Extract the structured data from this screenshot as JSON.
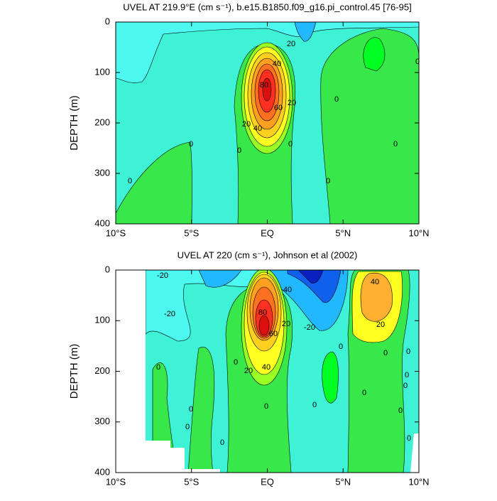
{
  "chart_data": [
    {
      "type": "contour",
      "title": "UVEL AT 219.9°E (cm s⁻¹), b.e15.B1850.f09_g16.pi_control.45 [76-95]",
      "ylabel": "DEPTH (m)",
      "xlim": [
        -10,
        10
      ],
      "xticks": [
        {
          "value": -10,
          "label": "10°S"
        },
        {
          "value": -5,
          "label": "5°S"
        },
        {
          "value": 0,
          "label": "EQ"
        },
        {
          "value": 5,
          "label": "5°N"
        },
        {
          "value": 10,
          "label": "10°N"
        }
      ],
      "ylim": [
        400,
        0
      ],
      "yticks": [
        0,
        100,
        200,
        300,
        400
      ],
      "contour_labels": [
        20,
        40,
        80,
        60,
        20,
        20,
        40,
        0,
        0,
        0,
        0,
        0,
        0,
        0,
        0
      ]
    },
    {
      "type": "contour",
      "title": "UVEL AT 220 (cm s⁻¹), Johnson et al (2002)",
      "ylabel": "DEPTH (m)",
      "xlim": [
        -10,
        10
      ],
      "xticks": [
        {
          "value": -10,
          "label": "10°S"
        },
        {
          "value": -5,
          "label": "5°S"
        },
        {
          "value": 0,
          "label": "EQ"
        },
        {
          "value": 5,
          "label": "5°N"
        },
        {
          "value": 10,
          "label": "10°N"
        }
      ],
      "ylim": [
        400,
        0
      ],
      "yticks": [
        0,
        100,
        200,
        300,
        400
      ],
      "contour_labels": [
        -20,
        40,
        -20,
        80,
        60,
        20,
        -20,
        40,
        20,
        0,
        0,
        0,
        0,
        0,
        20,
        40,
        0,
        0,
        0,
        0,
        0,
        0,
        0,
        0,
        0,
        0
      ]
    }
  ]
}
